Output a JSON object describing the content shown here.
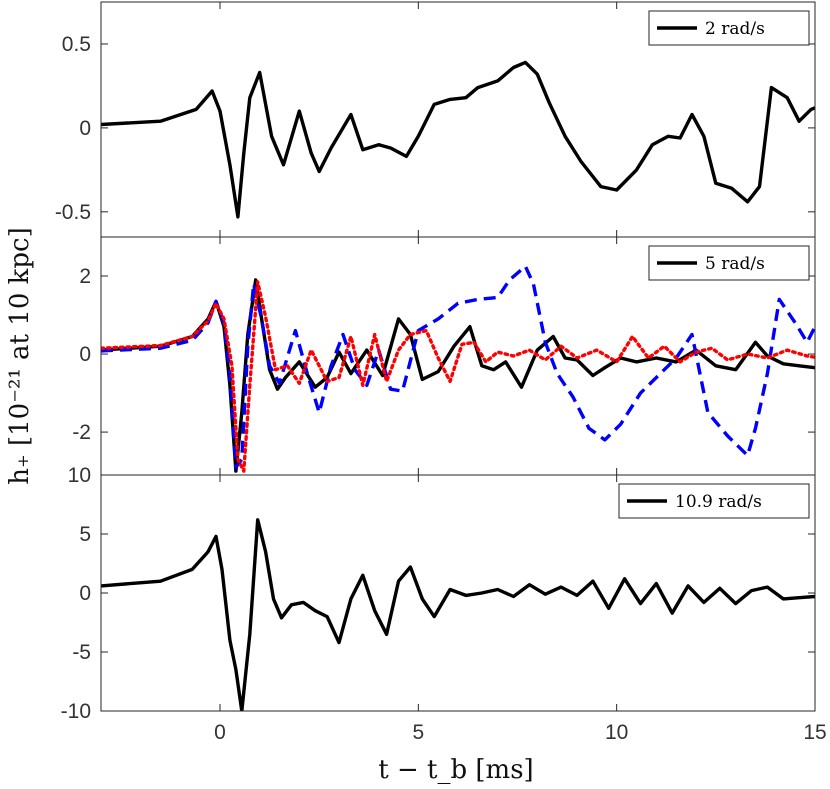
{
  "chart_data": {
    "type": "line",
    "ylabel": "h₊ [10⁻²¹ at 10 kpc]",
    "xlabel": "t − t_b [ms]",
    "xlim": [
      -3,
      15
    ],
    "x_ticks": [
      0,
      5,
      10,
      15
    ],
    "x_tick_labels": [
      "0",
      "5",
      "10",
      "15"
    ],
    "panels": [
      {
        "id": "panel-2",
        "ylim": [
          -0.65,
          0.75
        ],
        "y_ticks": [
          -0.5,
          0,
          0.5
        ],
        "y_tick_labels": [
          "-0.5",
          "0",
          "0.5"
        ],
        "legend": [
          "2 rad/s"
        ],
        "series": [
          {
            "name": "2 rad/s",
            "color": "#000000",
            "dash": "solid",
            "x": [
              -3,
              -1.5,
              -0.6,
              -0.2,
              0.0,
              0.25,
              0.45,
              0.6,
              0.75,
              1.0,
              1.3,
              1.6,
              2.0,
              2.3,
              2.5,
              2.8,
              3.3,
              3.6,
              4.0,
              4.3,
              4.7,
              5.0,
              5.4,
              5.8,
              6.2,
              6.5,
              7.0,
              7.4,
              7.7,
              8.0,
              8.3,
              8.7,
              9.1,
              9.6,
              10.0,
              10.5,
              10.9,
              11.3,
              11.6,
              11.9,
              12.2,
              12.5,
              12.9,
              13.3,
              13.6,
              13.9,
              14.3,
              14.6,
              14.9,
              15
            ],
            "y": [
              0.02,
              0.04,
              0.11,
              0.22,
              0.1,
              -0.22,
              -0.53,
              -0.15,
              0.18,
              0.33,
              -0.05,
              -0.22,
              0.1,
              -0.15,
              -0.26,
              -0.12,
              0.08,
              -0.13,
              -0.1,
              -0.12,
              -0.17,
              -0.05,
              0.14,
              0.17,
              0.18,
              0.24,
              0.28,
              0.36,
              0.39,
              0.32,
              0.15,
              -0.05,
              -0.2,
              -0.35,
              -0.37,
              -0.25,
              -0.1,
              -0.05,
              -0.06,
              0.08,
              -0.05,
              -0.33,
              -0.36,
              -0.44,
              -0.35,
              0.24,
              0.18,
              0.04,
              0.11,
              0.12
            ]
          }
        ]
      },
      {
        "id": "panel-5",
        "ylim": [
          -3.1,
          3.0
        ],
        "y_ticks": [
          -2,
          0,
          2
        ],
        "y_tick_labels": [
          "-2",
          "0",
          "2"
        ],
        "legend": [
          "5 rad/s"
        ],
        "series": [
          {
            "name": "5 rad/s",
            "color": "#000000",
            "dash": "solid",
            "x": [
              -3,
              -1.5,
              -0.7,
              -0.3,
              -0.1,
              0.1,
              0.25,
              0.4,
              0.55,
              0.7,
              0.9,
              1.05,
              1.25,
              1.45,
              1.65,
              2.0,
              2.4,
              2.7,
              3.0,
              3.3,
              3.7,
              4.1,
              4.5,
              4.8,
              5.1,
              5.5,
              5.9,
              6.3,
              6.6,
              6.9,
              7.2,
              7.6,
              8.0,
              8.4,
              8.7,
              9.0,
              9.4,
              9.7,
              10.1,
              10.5,
              11.0,
              11.5,
              12.0,
              12.5,
              13.0,
              13.5,
              13.8,
              14.2,
              14.6,
              15
            ],
            "y": [
              0.1,
              0.2,
              0.45,
              0.9,
              1.35,
              0.7,
              -0.8,
              -3.0,
              -1.5,
              0.5,
              1.9,
              0.9,
              -0.4,
              -0.9,
              -0.6,
              -0.2,
              -0.85,
              -0.6,
              0.05,
              -0.5,
              0.1,
              -0.55,
              0.9,
              0.5,
              -0.65,
              -0.45,
              0.2,
              0.7,
              -0.3,
              -0.4,
              -0.2,
              -0.85,
              0.1,
              0.45,
              -0.1,
              -0.15,
              -0.55,
              -0.35,
              -0.1,
              -0.2,
              -0.1,
              -0.2,
              0.1,
              -0.3,
              -0.4,
              0.3,
              -0.05,
              -0.25,
              -0.3,
              -0.35
            ]
          },
          {
            "name": "series-blue",
            "color": "#0000ff",
            "dash": "dash",
            "x": [
              -3,
              -1.5,
              -0.7,
              -0.3,
              -0.1,
              0.1,
              0.25,
              0.4,
              0.55,
              0.7,
              0.85,
              1.05,
              1.25,
              1.5,
              1.9,
              2.2,
              2.5,
              2.8,
              3.1,
              3.4,
              3.7,
              4.0,
              4.3,
              4.6,
              5.0,
              5.5,
              6.0,
              6.5,
              7.0,
              7.3,
              7.7,
              7.9,
              8.2,
              8.5,
              8.9,
              9.3,
              9.7,
              10.1,
              10.6,
              11.1,
              11.5,
              11.9,
              12.3,
              12.8,
              13.3,
              13.5,
              13.8,
              14.1,
              14.5,
              14.8,
              15
            ],
            "y": [
              0.08,
              0.15,
              0.35,
              0.8,
              1.35,
              0.8,
              -0.5,
              -2.9,
              -2.7,
              0.2,
              1.8,
              0.9,
              -0.3,
              -0.75,
              0.6,
              -0.5,
              -1.5,
              -0.3,
              0.5,
              -0.4,
              -0.8,
              0.1,
              -0.9,
              -0.95,
              0.6,
              0.9,
              1.3,
              1.4,
              1.45,
              1.9,
              2.25,
              1.8,
              0.3,
              -0.5,
              -1.1,
              -1.9,
              -2.2,
              -1.8,
              -1.0,
              -0.5,
              -0.1,
              0.5,
              -1.5,
              -2.1,
              -2.6,
              -1.9,
              -0.5,
              1.4,
              0.8,
              0.3,
              0.7
            ]
          },
          {
            "name": "series-red",
            "color": "#ff0000",
            "dash": "dot",
            "x": [
              -3,
              -1.5,
              -0.7,
              -0.3,
              -0.1,
              0.1,
              0.3,
              0.45,
              0.6,
              0.75,
              0.95,
              1.15,
              1.4,
              1.7,
              2.0,
              2.3,
              2.7,
              3.0,
              3.3,
              3.6,
              3.9,
              4.2,
              4.5,
              4.8,
              5.2,
              5.5,
              5.8,
              6.1,
              6.4,
              6.7,
              7.0,
              7.4,
              7.8,
              8.2,
              8.6,
              9.0,
              9.5,
              10.0,
              10.4,
              10.8,
              11.2,
              11.6,
              12.0,
              12.4,
              12.8,
              13.3,
              13.8,
              14.3,
              14.8,
              15
            ],
            "y": [
              0.15,
              0.22,
              0.45,
              0.85,
              1.3,
              0.9,
              -0.3,
              -2.7,
              -3.0,
              -0.8,
              1.85,
              0.95,
              -0.4,
              -0.3,
              -0.75,
              0.1,
              -0.7,
              -0.6,
              0.45,
              -0.8,
              0.5,
              -0.7,
              0.1,
              0.5,
              0.6,
              -0.1,
              -0.7,
              0.25,
              0.3,
              -0.2,
              0.05,
              -0.05,
              0.1,
              -0.15,
              0.2,
              -0.1,
              0.1,
              -0.2,
              0.45,
              -0.1,
              0.2,
              -0.2,
              0.05,
              0.15,
              -0.15,
              0.0,
              -0.1,
              0.1,
              -0.05,
              -0.08
            ]
          }
        ]
      },
      {
        "id": "panel-10",
        "ylim": [
          -10,
          10
        ],
        "y_ticks": [
          -10,
          -5,
          0,
          5,
          10
        ],
        "y_tick_labels": [
          "-10",
          "-5",
          "0",
          "5",
          "10"
        ],
        "legend": [
          "10.9 rad/s"
        ],
        "series": [
          {
            "name": "10.9 rad/s",
            "color": "#000000",
            "dash": "solid",
            "x": [
              -3,
              -1.5,
              -0.7,
              -0.3,
              -0.1,
              0.05,
              0.25,
              0.4,
              0.55,
              0.75,
              0.95,
              1.15,
              1.35,
              1.55,
              1.8,
              2.1,
              2.4,
              2.7,
              3.0,
              3.3,
              3.6,
              3.9,
              4.2,
              4.5,
              4.8,
              5.1,
              5.4,
              5.8,
              6.2,
              6.6,
              7.0,
              7.4,
              7.8,
              8.2,
              8.6,
              9.0,
              9.4,
              9.8,
              10.2,
              10.6,
              11.0,
              11.4,
              11.8,
              12.2,
              12.6,
              13.0,
              13.4,
              13.8,
              14.2,
              14.6,
              15
            ],
            "y": [
              0.6,
              1.0,
              2.0,
              3.5,
              4.8,
              2.0,
              -4.0,
              -6.5,
              -10.0,
              -3.5,
              6.2,
              3.5,
              -0.5,
              -2.1,
              -1.0,
              -0.8,
              -1.5,
              -2.0,
              -4.2,
              -0.5,
              1.5,
              -1.5,
              -3.5,
              1.0,
              2.2,
              -0.5,
              -2.0,
              0.3,
              -0.2,
              0.0,
              0.3,
              -0.3,
              0.7,
              -0.1,
              0.5,
              -0.2,
              1.0,
              -1.3,
              1.2,
              -0.9,
              0.8,
              -1.7,
              0.6,
              -0.8,
              0.4,
              -0.9,
              0.2,
              0.5,
              -0.5,
              -0.4,
              -0.3
            ]
          }
        ]
      }
    ]
  }
}
